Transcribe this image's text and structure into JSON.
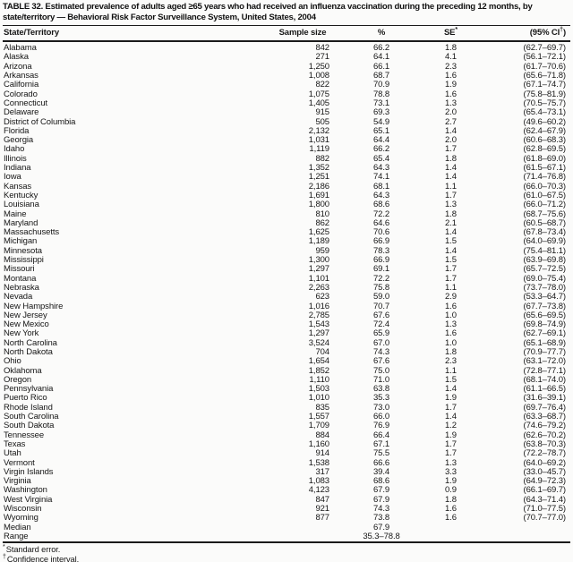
{
  "page": {
    "title": "TABLE 32. Estimated prevalence of adults aged ≥65 years who had received an influenza vaccination during the preceding 12 months, by state/territory — Behavioral Risk Factor Surveillance System, United States, 2004"
  },
  "table": {
    "header": {
      "state": "State/Territory",
      "sample": "Sample size",
      "pct": "%",
      "se": "SE",
      "se_marker": "*",
      "ci_open": "(95% CI",
      "ci_marker": "†",
      "ci_close": ")"
    },
    "rows": [
      [
        "Alabama",
        "842",
        "66.2",
        "1.8",
        "(62.7–69.7)"
      ],
      [
        "Alaska",
        "271",
        "64.1",
        "4.1",
        "(56.1–72.1)"
      ],
      [
        "Arizona",
        "1,250",
        "66.1",
        "2.3",
        "(61.7–70.6)"
      ],
      [
        "Arkansas",
        "1,008",
        "68.7",
        "1.6",
        "(65.6–71.8)"
      ],
      [
        "California",
        "822",
        "70.9",
        "1.9",
        "(67.1–74.7)"
      ],
      [
        "Colorado",
        "1,075",
        "78.8",
        "1.6",
        "(75.8–81.9)"
      ],
      [
        "Connecticut",
        "1,405",
        "73.1",
        "1.3",
        "(70.5–75.7)"
      ],
      [
        "Delaware",
        "915",
        "69.3",
        "2.0",
        "(65.4–73.1)"
      ],
      [
        "District of Columbia",
        "505",
        "54.9",
        "2.7",
        "(49.6–60.2)"
      ],
      [
        "Florida",
        "2,132",
        "65.1",
        "1.4",
        "(62.4–67.9)"
      ],
      [
        "Georgia",
        "1,031",
        "64.4",
        "2.0",
        "(60.6–68.3)"
      ],
      [
        "Idaho",
        "1,119",
        "66.2",
        "1.7",
        "(62.8–69.5)"
      ],
      [
        "Illinois",
        "882",
        "65.4",
        "1.8",
        "(61.8–69.0)"
      ],
      [
        "Indiana",
        "1,352",
        "64.3",
        "1.4",
        "(61.5–67.1)"
      ],
      [
        "Iowa",
        "1,251",
        "74.1",
        "1.4",
        "(71.4–76.8)"
      ],
      [
        "Kansas",
        "2,186",
        "68.1",
        "1.1",
        "(66.0–70.3)"
      ],
      [
        "Kentucky",
        "1,691",
        "64.3",
        "1.7",
        "(61.0–67.5)"
      ],
      [
        "Louisiana",
        "1,800",
        "68.6",
        "1.3",
        "(66.0–71.2)"
      ],
      [
        "Maine",
        "810",
        "72.2",
        "1.8",
        "(68.7–75.6)"
      ],
      [
        "Maryland",
        "862",
        "64.6",
        "2.1",
        "(60.5–68.7)"
      ],
      [
        "Massachusetts",
        "1,625",
        "70.6",
        "1.4",
        "(67.8–73.4)"
      ],
      [
        "Michigan",
        "1,189",
        "66.9",
        "1.5",
        "(64.0–69.9)"
      ],
      [
        "Minnesota",
        "959",
        "78.3",
        "1.4",
        "(75.4–81.1)"
      ],
      [
        "Mississippi",
        "1,300",
        "66.9",
        "1.5",
        "(63.9–69.8)"
      ],
      [
        "Missouri",
        "1,297",
        "69.1",
        "1.7",
        "(65.7–72.5)"
      ],
      [
        "Montana",
        "1,101",
        "72.2",
        "1.7",
        "(69.0–75.4)"
      ],
      [
        "Nebraska",
        "2,263",
        "75.8",
        "1.1",
        "(73.7–78.0)"
      ],
      [
        "Nevada",
        "623",
        "59.0",
        "2.9",
        "(53.3–64.7)"
      ],
      [
        "New Hampshire",
        "1,016",
        "70.7",
        "1.6",
        "(67.7–73.8)"
      ],
      [
        "New Jersey",
        "2,785",
        "67.6",
        "1.0",
        "(65.6–69.5)"
      ],
      [
        "New Mexico",
        "1,543",
        "72.4",
        "1.3",
        "(69.8–74.9)"
      ],
      [
        "New York",
        "1,297",
        "65.9",
        "1.6",
        "(62.7–69.1)"
      ],
      [
        "North Carolina",
        "3,524",
        "67.0",
        "1.0",
        "(65.1–68.9)"
      ],
      [
        "North Dakota",
        "704",
        "74.3",
        "1.8",
        "(70.9–77.7)"
      ],
      [
        "Ohio",
        "1,654",
        "67.6",
        "2.3",
        "(63.1–72.0)"
      ],
      [
        "Oklahoma",
        "1,852",
        "75.0",
        "1.1",
        "(72.8–77.1)"
      ],
      [
        "Oregon",
        "1,110",
        "71.0",
        "1.5",
        "(68.1–74.0)"
      ],
      [
        "Pennsylvania",
        "1,503",
        "63.8",
        "1.4",
        "(61.1–66.5)"
      ],
      [
        "Puerto Rico",
        "1,010",
        "35.3",
        "1.9",
        "(31.6–39.1)"
      ],
      [
        "Rhode Island",
        "835",
        "73.0",
        "1.7",
        "(69.7–76.4)"
      ],
      [
        "South Carolina",
        "1,557",
        "66.0",
        "1.4",
        "(63.3–68.7)"
      ],
      [
        "South Dakota",
        "1,709",
        "76.9",
        "1.2",
        "(74.6–79.2)"
      ],
      [
        "Tennessee",
        "884",
        "66.4",
        "1.9",
        "(62.6–70.2)"
      ],
      [
        "Texas",
        "1,160",
        "67.1",
        "1.7",
        "(63.8–70.3)"
      ],
      [
        "Utah",
        "914",
        "75.5",
        "1.7",
        "(72.2–78.7)"
      ],
      [
        "Vermont",
        "1,538",
        "66.6",
        "1.3",
        "(64.0–69.2)"
      ],
      [
        "Virgin Islands",
        "317",
        "39.4",
        "3.3",
        "(33.0–45.7)"
      ],
      [
        "Virginia",
        "1,083",
        "68.6",
        "1.9",
        "(64.9–72.3)"
      ],
      [
        "Washington",
        "4,123",
        "67.9",
        "0.9",
        "(66.1–69.7)"
      ],
      [
        "West Virginia",
        "847",
        "67.9",
        "1.8",
        "(64.3–71.4)"
      ],
      [
        "Wisconsin",
        "921",
        "74.3",
        "1.6",
        "(71.0–77.5)"
      ],
      [
        "Wyoming",
        "877",
        "73.8",
        "1.6",
        "(70.7–77.0)"
      ],
      [
        "Median",
        "",
        "67.9",
        "",
        ""
      ],
      [
        "Range",
        "",
        "35.3–78.8",
        "",
        ""
      ]
    ],
    "footnotes": [
      {
        "marker": "*",
        "text": "Standard error."
      },
      {
        "marker": "†",
        "text": "Confidence interval."
      }
    ]
  }
}
